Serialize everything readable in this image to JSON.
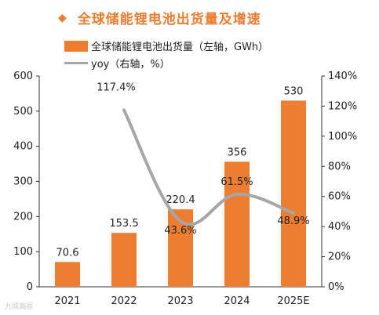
{
  "header": {
    "bullet": "◆",
    "title": "全球储能锂电池出货量及增速"
  },
  "legend": {
    "bar_label": "全球储能锂电池出货量（左轴，GWh）",
    "line_label": "yoy（右轴，%）"
  },
  "watermark": "九城瀚辰",
  "colors": {
    "bar": "#ED7D31",
    "line": "#A6A6A6",
    "title": "#ED7D31",
    "text": "#222222"
  },
  "chart_data": {
    "type": "bar",
    "categories": [
      "2021",
      "2022",
      "2023",
      "2024",
      "2025E"
    ],
    "series": [
      {
        "name": "全球储能锂电池出货量（左轴，GWh）",
        "type": "bar",
        "axis": "left",
        "values": [
          70.6,
          153.5,
          220.4,
          356,
          530
        ],
        "labels": [
          "70.6",
          "153.5",
          "220.4",
          "356",
          "530"
        ]
      },
      {
        "name": "yoy（右轴，%）",
        "type": "line",
        "axis": "right",
        "values": [
          null,
          117.4,
          43.6,
          61.5,
          48.9
        ],
        "labels": [
          "",
          "117.4%",
          "43.6%",
          "61.5%",
          "48.9%"
        ]
      }
    ],
    "left_axis": {
      "min": 0,
      "max": 600,
      "ticks": [
        "0",
        "100",
        "200",
        "300",
        "400",
        "500",
        "600"
      ]
    },
    "right_axis": {
      "min": 0,
      "max": 140,
      "ticks": [
        "0%",
        "20%",
        "40%",
        "60%",
        "80%",
        "100%",
        "120%",
        "140%"
      ]
    },
    "grid": false,
    "legend_position": "top-left"
  }
}
